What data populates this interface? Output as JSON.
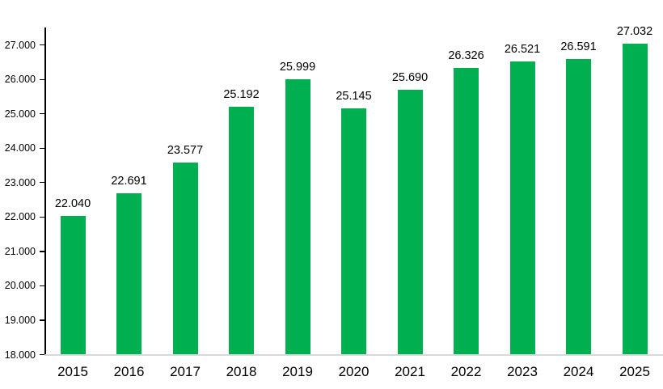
{
  "chart_data": {
    "type": "bar",
    "title": "",
    "xlabel": "",
    "ylabel": "",
    "categories": [
      "2015",
      "2016",
      "2017",
      "2018",
      "2019",
      "2020",
      "2021",
      "2022",
      "2023",
      "2024",
      "2025"
    ],
    "values": [
      22040,
      22691,
      23577,
      25192,
      25999,
      25145,
      25690,
      26326,
      26521,
      26591,
      27032
    ],
    "value_labels": [
      "22.040",
      "22.691",
      "23.577",
      "25.192",
      "25.999",
      "25.145",
      "25.690",
      "26.326",
      "26.521",
      "26.591",
      "27.032"
    ],
    "ylim": [
      18000,
      27500
    ],
    "y_ticks": [
      {
        "value": 18000,
        "label": "18.000"
      },
      {
        "value": 19000,
        "label": "19.000"
      },
      {
        "value": 20000,
        "label": "20.000"
      },
      {
        "value": 21000,
        "label": "21.000"
      },
      {
        "value": 22000,
        "label": "22.000"
      },
      {
        "value": 23000,
        "label": "23.000"
      },
      {
        "value": 24000,
        "label": "24.000"
      },
      {
        "value": 25000,
        "label": "25.000"
      },
      {
        "value": 26000,
        "label": "26.000"
      },
      {
        "value": 27000,
        "label": "27.000"
      }
    ],
    "grid": false,
    "legend": false,
    "colors": {
      "bar": "#00b050",
      "axis": "#000000",
      "baseline": "#d9d9d9",
      "text": "#000000"
    }
  }
}
